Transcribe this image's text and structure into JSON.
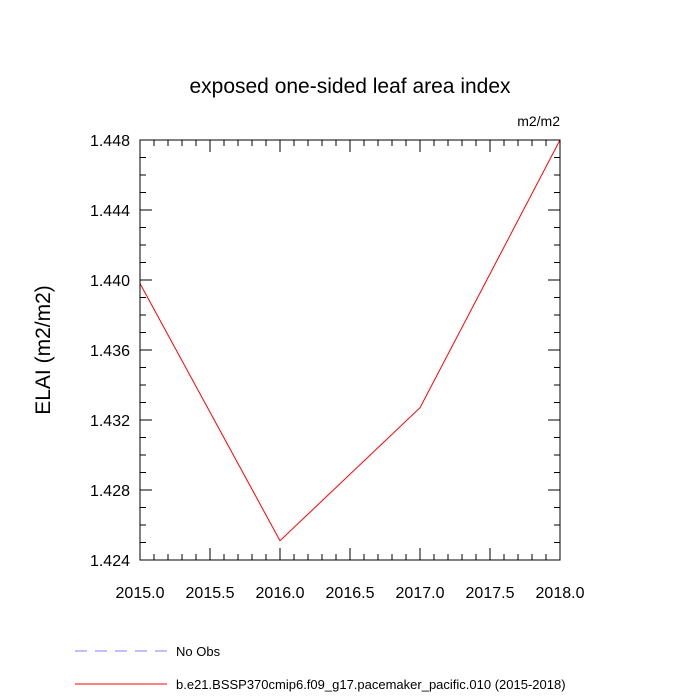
{
  "chart_data": {
    "type": "line",
    "title": "exposed one-sided leaf area index",
    "units": "m2/m2",
    "ylabel": "ELAI  (m2/m2)",
    "xlabel": "",
    "xlim": [
      2015.0,
      2018.0
    ],
    "ylim": [
      1.424,
      1.448
    ],
    "x_ticks": [
      "2015.0",
      "2015.5",
      "2016.0",
      "2016.5",
      "2017.0",
      "2017.5",
      "2018.0"
    ],
    "y_ticks": [
      "1.424",
      "1.428",
      "1.432",
      "1.436",
      "1.440",
      "1.444",
      "1.448"
    ],
    "grid": false,
    "legend_position": "bottom",
    "series": [
      {
        "name": "No Obs",
        "color": "#8080ff",
        "style": "dashed",
        "x": [],
        "y": []
      },
      {
        "name": "b.e21.BSSP370cmip6.f09_g17.pacemaker_pacific.010 (2015-2018)",
        "color": "#ff0000",
        "style": "solid",
        "x": [
          2015.0,
          2016.0,
          2017.0,
          2018.0
        ],
        "y": [
          1.4398,
          1.4251,
          1.4327,
          1.448
        ]
      }
    ]
  }
}
